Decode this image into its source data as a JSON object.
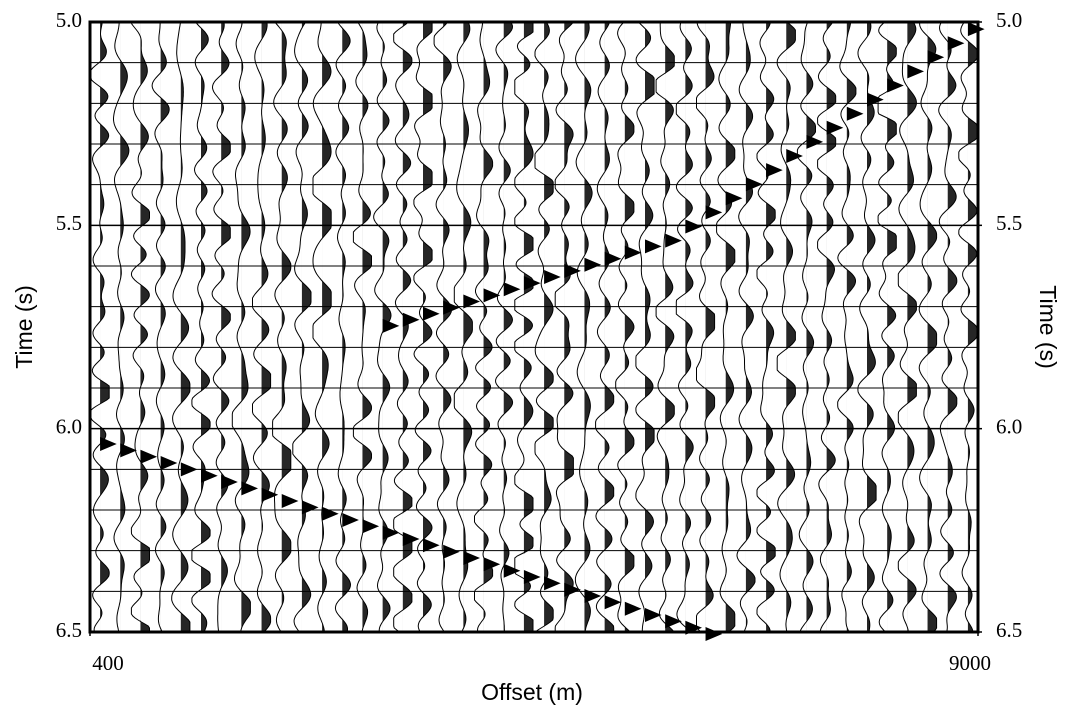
{
  "chart_data": {
    "type": "wiggle",
    "xlabel": "Offset (m)",
    "ylabel": "Time (s)",
    "y2label": "Time (s)",
    "xlim": [
      400,
      9000
    ],
    "xticks": [
      400,
      9000
    ],
    "ylim": [
      6.5,
      5.0
    ],
    "yticks": [
      {
        "value": 5.0,
        "label": "5.0"
      },
      5.5,
      {
        "value": 6.0,
        "label": "6.0"
      },
      6.5
    ],
    "y2lim": [
      6.5,
      5.0
    ],
    "y2ticks": [
      {
        "value": 5.0,
        "label": "5.0"
      },
      5.5,
      {
        "value": 6.0,
        "label": "6.0"
      },
      6.5
    ],
    "ygrid": [
      5.1,
      5.2,
      5.3,
      5.4,
      5.6,
      5.7,
      5.8,
      5.9,
      6.1,
      6.2,
      6.3,
      6.4
    ],
    "traces": 44,
    "color": "#000000",
    "events": [
      {
        "x": [
          400,
          6300
        ],
        "y": [
          6.03,
          6.5
        ]
      },
      {
        "x": [
          5900,
          9000
        ],
        "y": [
          5.55,
          5.0
        ]
      },
      {
        "x": [
          3200,
          5800
        ],
        "y": [
          5.75,
          5.55
        ]
      }
    ]
  }
}
